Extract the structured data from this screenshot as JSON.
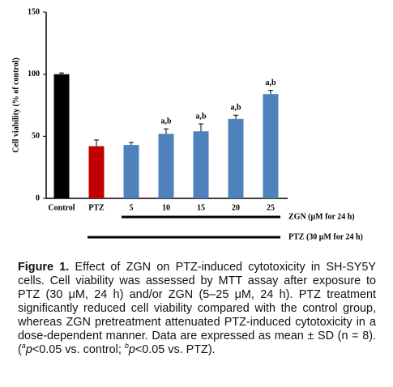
{
  "chart_data": {
    "type": "bar",
    "ylabel": "Cell viability (% of control)",
    "categories": [
      "Control",
      "PTZ",
      "5",
      "10",
      "15",
      "20",
      "25"
    ],
    "values": [
      100,
      42,
      43,
      52,
      54,
      64,
      84
    ],
    "errors": [
      1,
      5,
      2,
      4,
      6,
      3,
      3
    ],
    "colors": [
      "#000000",
      "#c00000",
      "#4f81bd",
      "#4f81bd",
      "#4f81bd",
      "#4f81bd",
      "#4f81bd"
    ],
    "annotations": [
      null,
      null,
      null,
      "a,b",
      "a,b",
      "a,b",
      "a,b"
    ],
    "ylim": [
      0,
      150
    ],
    "yticks": [
      0,
      50,
      100,
      150
    ],
    "groups": [
      "ZGN (μM for 24 h)",
      "PTZ (30 μM for 24 h)"
    ]
  },
  "caption": {
    "label": "Figure 1.",
    "text": " Effect of ZGN on PTZ-induced cytotoxicity in SH-SY5Y cells. Cell viability was assessed by MTT assay after exposure to PTZ (30 μM, 24 h) and/or ZGN (5–25 μM, 24 h). PTZ treatment significantly reduced cell viability compared with the control group, whereas ZGN pretreatment attenuated PTZ-induced cytotoxicity in a dose-dependent manner. Data are expressed as mean ± SD (n = 8). (",
    "sup_a": "a",
    "p1": "p",
    "t1": "<0.05 vs. control; ",
    "sup_b": "b",
    "p2": "p",
    "t2": "<0.05 vs. PTZ)."
  }
}
